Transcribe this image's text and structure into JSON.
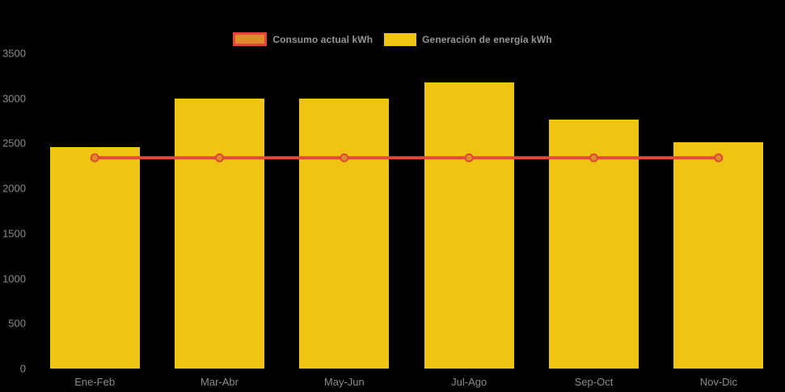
{
  "chart_data": {
    "type": "bar",
    "title": "",
    "categories": [
      "Ene-Feb",
      "Mar-Abr",
      "May-Jun",
      "Jul-Ago",
      "Sep-Oct",
      "Nov-Dic"
    ],
    "series": [
      {
        "name": "Consumo actual kWh",
        "type": "line",
        "values": [
          2340,
          2340,
          2340,
          2340,
          2340,
          2340
        ],
        "line_color": "#E14B3B",
        "marker_fill": "#E08A2E",
        "marker_stroke": "#E2453A"
      },
      {
        "name": "Generación de energía kWh",
        "type": "bar",
        "values": [
          2460,
          3000,
          3000,
          3180,
          2760,
          2510
        ],
        "bar_color": "#F0C413"
      }
    ],
    "xlabel": "",
    "ylabel": "",
    "ylim": [
      0,
      3500
    ],
    "ytick_step": 500,
    "ytick_labels": [
      "0",
      "500",
      "1000",
      "1500",
      "2000",
      "2500",
      "3000",
      "3500"
    ],
    "grid": false,
    "legend_position": "top",
    "background_color": "#000000",
    "axis_text_color": "#8a8a8a"
  }
}
